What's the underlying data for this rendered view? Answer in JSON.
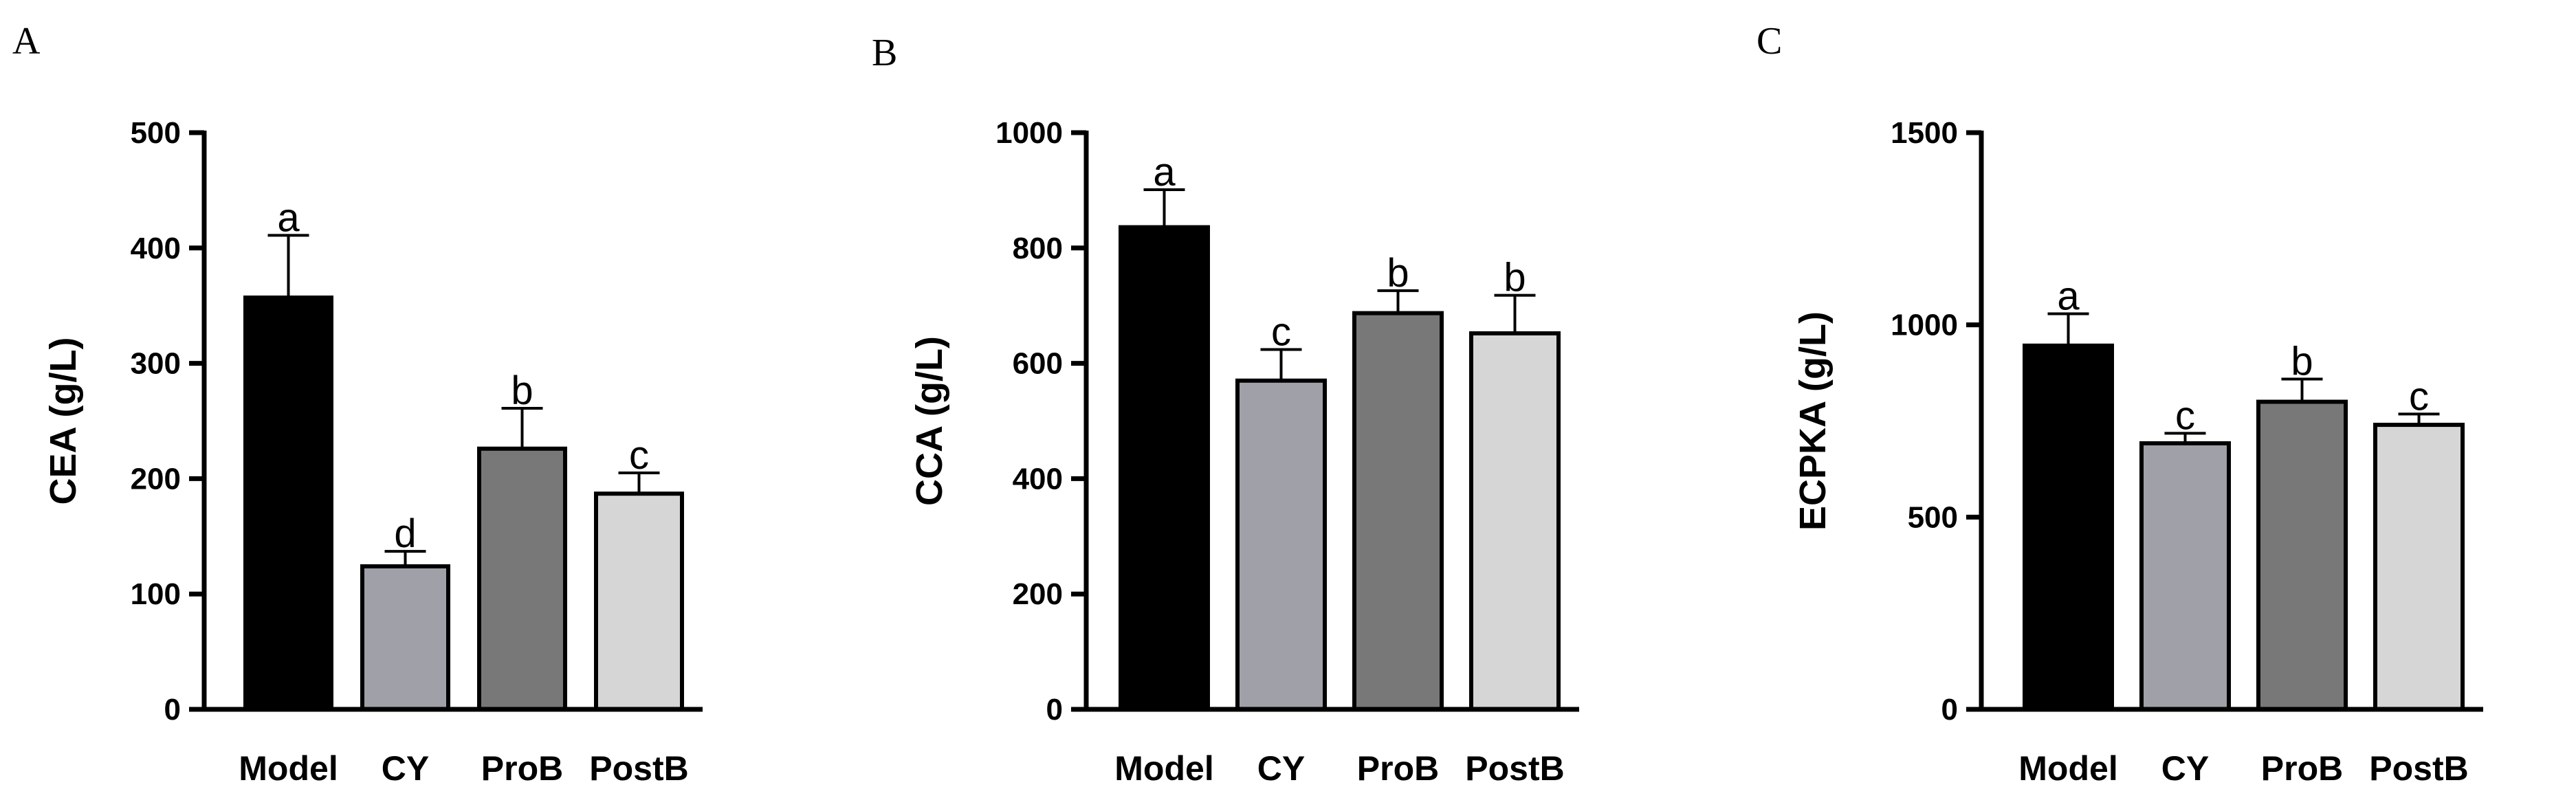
{
  "figure": {
    "panels": [
      "A",
      "B",
      "C"
    ]
  },
  "colors": {
    "Model": "#000000",
    "CY": "#a0a0a8",
    "ProB": "#787878",
    "PostB": "#d6d6d6"
  },
  "chart_data": [
    {
      "type": "bar",
      "panel": "A",
      "categories": [
        "Model",
        "CY",
        "ProB",
        "PostB"
      ],
      "values": [
        357,
        124,
        226,
        187
      ],
      "error_upper": [
        411,
        137,
        261,
        205
      ],
      "significance": [
        "a",
        "d",
        "b",
        "c"
      ],
      "ylabel": "CEA (g/L)",
      "xlabel": "",
      "ylim": [
        0,
        500
      ],
      "yticks": [
        0,
        100,
        200,
        300,
        400,
        500
      ],
      "ytick_labels": [
        "0",
        "100",
        "200",
        "300",
        "400",
        "500"
      ]
    },
    {
      "type": "bar",
      "panel": "B",
      "categories": [
        "Model",
        "CY",
        "ProB",
        "PostB"
      ],
      "values": [
        836,
        570,
        687,
        652
      ],
      "error_upper": [
        901,
        624,
        726,
        718
      ],
      "significance": [
        "a",
        "c",
        "b",
        "b"
      ],
      "ylabel": "CCA (g/L)",
      "xlabel": "",
      "ylim": [
        0,
        1000
      ],
      "yticks": [
        0,
        200,
        400,
        600,
        800,
        1000
      ],
      "ytick_labels": [
        "0",
        "200",
        "400",
        "600",
        "800",
        "1000"
      ]
    },
    {
      "type": "bar",
      "panel": "C",
      "categories": [
        "Model",
        "CY",
        "ProB",
        "PostB"
      ],
      "values": [
        946,
        692,
        800,
        740
      ],
      "error_upper": [
        1029,
        718,
        859,
        768
      ],
      "significance": [
        "a",
        "c",
        "b",
        "c"
      ],
      "ylabel": "ECPKA (g/L)",
      "xlabel": "",
      "ylim": [
        0,
        1500
      ],
      "yticks": [
        0,
        500,
        1000,
        1500
      ],
      "ytick_labels": [
        "0",
        "500",
        "1000",
        "1500"
      ]
    }
  ]
}
